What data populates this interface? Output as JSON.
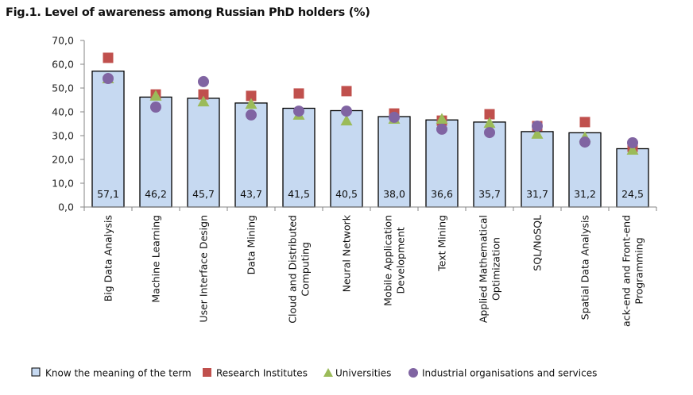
{
  "title": "Fig.1. Level of awareness among Russian PhD holders (%)",
  "chart_data": {
    "type": "bar",
    "title": "Fig.1. Level of awareness among Russian PhD holders (%)",
    "xlabel": "",
    "ylabel": "",
    "ylim": [
      0,
      70
    ],
    "yticks": [
      "0,0",
      "10,0",
      "20,0",
      "30,0",
      "40,0",
      "50,0",
      "60,0",
      "70,0"
    ],
    "grid": false,
    "legend_position": "bottom",
    "categories": [
      [
        "Big Data Analysis"
      ],
      [
        "Machine Learning"
      ],
      [
        "User Interface Design"
      ],
      [
        "Data Mining"
      ],
      [
        "Cloud and Distributed",
        "Computing"
      ],
      [
        "Neural Network"
      ],
      [
        "Mobile Application",
        "Development"
      ],
      [
        "Text Mining"
      ],
      [
        "Applied Mathematical",
        "Optimization"
      ],
      [
        "SQL/NoSQL"
      ],
      [
        "Spatial Data Analysis"
      ],
      [
        "ack-end and Front-end",
        "Programming"
      ]
    ],
    "series": [
      {
        "name": "Know the meaning of the term",
        "kind": "bar",
        "color": "#c6d9f1",
        "values": [
          57.1,
          46.2,
          45.7,
          43.7,
          41.5,
          40.5,
          38.0,
          36.6,
          35.7,
          31.7,
          31.2,
          24.5
        ],
        "labels": [
          "57,1",
          "46,2",
          "45,7",
          "43,7",
          "41,5",
          "40,5",
          "38,0",
          "36,6",
          "35,7",
          "31,7",
          "31,2",
          "24,5"
        ]
      },
      {
        "name": "Research Institutes",
        "kind": "square",
        "color": "#c0504d",
        "values": [
          62.7,
          47.3,
          47.3,
          46.7,
          47.7,
          48.7,
          39.3,
          36.3,
          39.0,
          34.0,
          35.7,
          25.3
        ]
      },
      {
        "name": "Universities",
        "kind": "triangle",
        "color": "#9bbb59",
        "values": [
          54.0,
          46.7,
          44.3,
          43.3,
          38.7,
          36.3,
          37.0,
          37.0,
          35.3,
          30.7,
          29.3,
          24.0
        ]
      },
      {
        "name": "Industrial organisations and services",
        "kind": "circle",
        "color": "#8064a2",
        "values": [
          54.0,
          42.0,
          52.7,
          38.7,
          40.3,
          40.3,
          37.7,
          32.7,
          31.3,
          34.0,
          27.3,
          27.0
        ]
      }
    ]
  }
}
